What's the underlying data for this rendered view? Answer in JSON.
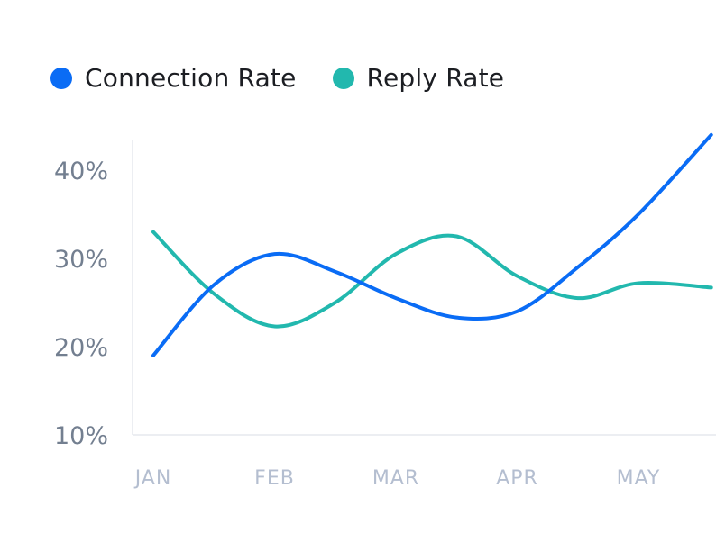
{
  "colors": {
    "connection": "#0a6cf5",
    "reply": "#22b8ae",
    "axis": "#eceef2",
    "ytick": "#737f90",
    "xtick": "#b4bed0",
    "legend_text": "#1c1e23"
  },
  "legend": {
    "connection_label": "Connection Rate",
    "reply_label": "Reply Rate"
  },
  "chart_data": {
    "type": "line",
    "categories": [
      "JAN",
      "FEB",
      "MAR",
      "APR",
      "MAY"
    ],
    "ylim": [
      10,
      45
    ],
    "yticks": [
      10,
      20,
      30,
      40
    ],
    "ytick_labels": [
      "10%",
      "20%",
      "30%",
      "40%"
    ],
    "series": [
      {
        "name": "Connection Rate",
        "key": "connection",
        "x": [
          0.0,
          0.5,
          1.0,
          1.5,
          2.0,
          2.5,
          3.0,
          3.5,
          4.0,
          4.6
        ],
        "values": [
          19,
          27,
          30.5,
          28.5,
          25.5,
          23.3,
          24,
          29,
          35,
          44
        ]
      },
      {
        "name": "Reply Rate",
        "key": "reply",
        "x": [
          0.0,
          0.5,
          1.0,
          1.5,
          2.0,
          2.5,
          3.0,
          3.5,
          4.0,
          4.6
        ],
        "values": [
          33,
          26,
          22.3,
          25,
          30.5,
          32.5,
          28,
          25.5,
          27.2,
          26.7
        ]
      }
    ]
  }
}
